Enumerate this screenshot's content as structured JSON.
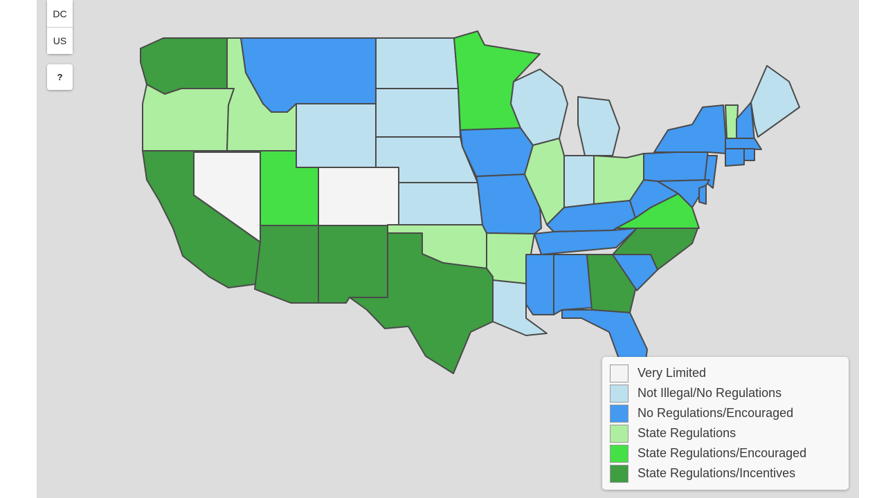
{
  "controls": {
    "zoom_buttons": [
      "DC",
      "US"
    ],
    "help_label": "?"
  },
  "colors": {
    "background": "#dddddd",
    "border": "#4a4a4a",
    "very_limited": "#f4f4f4",
    "not_illegal": "#bde0ee",
    "no_reg_encouraged": "#4499f0",
    "state_regulations": "#aeeea0",
    "state_reg_encouraged": "#45e046",
    "state_reg_incentives": "#3f9d42"
  },
  "legend": {
    "items": [
      {
        "label": "Very Limited",
        "color": "#f4f4f4"
      },
      {
        "label": "Not Illegal/No Regulations",
        "color": "#bde0ee"
      },
      {
        "label": "No Regulations/Encouraged",
        "color": "#4499f0"
      },
      {
        "label": "State Regulations",
        "color": "#aeeea0"
      },
      {
        "label": "State Regulations/Encouraged",
        "color": "#45e046"
      },
      {
        "label": "State Regulations/Incentives",
        "color": "#3f9d42"
      }
    ]
  },
  "states": [
    {
      "abbr": "WA",
      "category": "state_reg_incentives"
    },
    {
      "abbr": "OR",
      "category": "state_regulations"
    },
    {
      "abbr": "CA",
      "category": "state_reg_incentives"
    },
    {
      "abbr": "NV",
      "category": "very_limited"
    },
    {
      "abbr": "ID",
      "category": "state_regulations"
    },
    {
      "abbr": "MT",
      "category": "no_reg_encouraged"
    },
    {
      "abbr": "WY",
      "category": "not_illegal"
    },
    {
      "abbr": "UT",
      "category": "state_reg_encouraged"
    },
    {
      "abbr": "CO",
      "category": "very_limited"
    },
    {
      "abbr": "AZ",
      "category": "state_reg_incentives"
    },
    {
      "abbr": "NM",
      "category": "state_reg_incentives"
    },
    {
      "abbr": "ND",
      "category": "not_illegal"
    },
    {
      "abbr": "SD",
      "category": "not_illegal"
    },
    {
      "abbr": "NE",
      "category": "not_illegal"
    },
    {
      "abbr": "KS",
      "category": "not_illegal"
    },
    {
      "abbr": "OK",
      "category": "state_regulations"
    },
    {
      "abbr": "TX",
      "category": "state_reg_incentives"
    },
    {
      "abbr": "MN",
      "category": "state_reg_encouraged"
    },
    {
      "abbr": "IA",
      "category": "no_reg_encouraged"
    },
    {
      "abbr": "MO",
      "category": "no_reg_encouraged"
    },
    {
      "abbr": "AR",
      "category": "state_regulations"
    },
    {
      "abbr": "LA",
      "category": "not_illegal"
    },
    {
      "abbr": "WI",
      "category": "not_illegal"
    },
    {
      "abbr": "IL",
      "category": "state_regulations"
    },
    {
      "abbr": "MI",
      "category": "not_illegal"
    },
    {
      "abbr": "IN",
      "category": "not_illegal"
    },
    {
      "abbr": "OH",
      "category": "state_regulations"
    },
    {
      "abbr": "KY",
      "category": "no_reg_encouraged"
    },
    {
      "abbr": "TN",
      "category": "no_reg_encouraged"
    },
    {
      "abbr": "MS",
      "category": "no_reg_encouraged"
    },
    {
      "abbr": "AL",
      "category": "no_reg_encouraged"
    },
    {
      "abbr": "GA",
      "category": "state_reg_incentives"
    },
    {
      "abbr": "FL",
      "category": "no_reg_encouraged"
    },
    {
      "abbr": "SC",
      "category": "no_reg_encouraged"
    },
    {
      "abbr": "NC",
      "category": "state_reg_incentives"
    },
    {
      "abbr": "VA",
      "category": "state_reg_encouraged"
    },
    {
      "abbr": "WV",
      "category": "no_reg_encouraged"
    },
    {
      "abbr": "PA",
      "category": "no_reg_encouraged"
    },
    {
      "abbr": "NY",
      "category": "no_reg_encouraged"
    },
    {
      "abbr": "NJ",
      "category": "no_reg_encouraged"
    },
    {
      "abbr": "MD",
      "category": "no_reg_encouraged"
    },
    {
      "abbr": "DE",
      "category": "no_reg_encouraged"
    },
    {
      "abbr": "VT",
      "category": "state_regulations"
    },
    {
      "abbr": "NH",
      "category": "no_reg_encouraged"
    },
    {
      "abbr": "ME",
      "category": "not_illegal"
    },
    {
      "abbr": "MA",
      "category": "no_reg_encouraged"
    },
    {
      "abbr": "CT",
      "category": "no_reg_encouraged"
    },
    {
      "abbr": "RI",
      "category": "no_reg_encouraged"
    }
  ]
}
